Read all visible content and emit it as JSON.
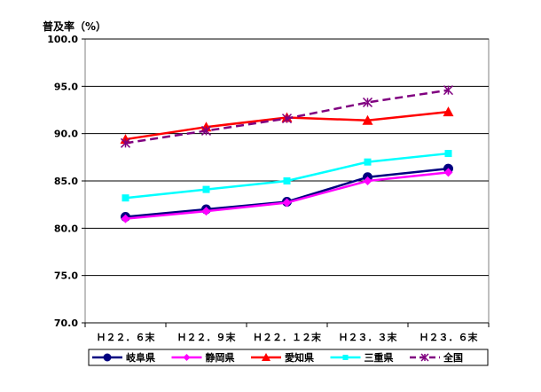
{
  "chart_data": {
    "type": "line",
    "ylabel": "普及率（%）",
    "categories": [
      "Ｈ２２．６末",
      "Ｈ２２．９末",
      "Ｈ２２．１２末",
      "Ｈ２３．３末",
      "Ｈ２３．６末"
    ],
    "ylim": [
      70.0,
      100.0
    ],
    "yticks": [
      "70.0",
      "75.0",
      "80.0",
      "85.0",
      "90.0",
      "95.0",
      "100.0"
    ],
    "grid": true,
    "legend_position": "bottom",
    "series": [
      {
        "name": "岐阜県",
        "values": [
          81.2,
          82.0,
          82.8,
          85.4,
          86.3
        ],
        "color": "#000080",
        "marker": "circle",
        "dash": false
      },
      {
        "name": "静岡県",
        "values": [
          81.0,
          81.8,
          82.7,
          85.0,
          85.9
        ],
        "color": "#ff00ff",
        "marker": "diamond",
        "dash": false
      },
      {
        "name": "愛知県",
        "values": [
          89.4,
          90.7,
          91.7,
          91.4,
          92.3
        ],
        "color": "#ff0000",
        "marker": "triangle",
        "dash": false
      },
      {
        "name": "三重県",
        "values": [
          83.2,
          84.1,
          85.0,
          87.0,
          87.9
        ],
        "color": "#00ffff",
        "marker": "square",
        "dash": false
      },
      {
        "name": "全国",
        "values": [
          89.0,
          90.3,
          91.6,
          93.3,
          94.6
        ],
        "color": "#800080",
        "marker": "star",
        "dash": true
      }
    ]
  }
}
